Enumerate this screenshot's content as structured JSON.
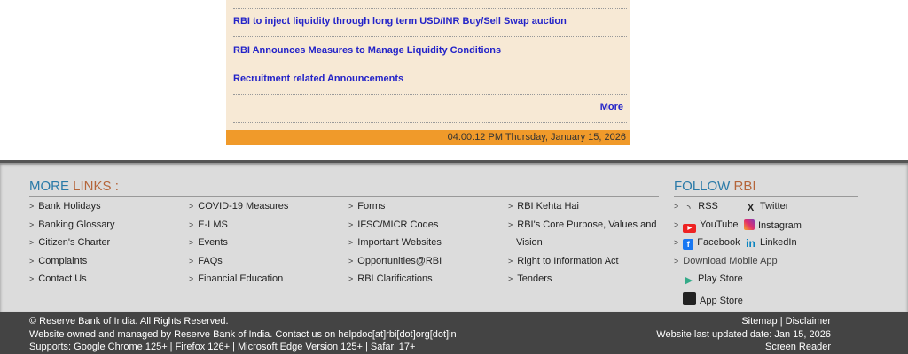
{
  "news": {
    "items": [
      "RBI to inject liquidity through long term USD/INR Buy/Sell Swap auction",
      "RBI Announces Measures to Manage Liquidity Conditions",
      "Recruitment related Announcements"
    ],
    "more": "More",
    "clock": "04:00:12 PM Thursday, January 15, 2026"
  },
  "more_links": {
    "title_a": "MORE",
    "title_b": "LINKS :",
    "columns": [
      [
        "Bank Holidays",
        "Banking Glossary",
        "Citizen's Charter",
        "Complaints",
        "Contact Us"
      ],
      [
        "COVID-19 Measures",
        "E-LMS",
        "Events",
        "FAQs",
        "Financial Education"
      ],
      [
        "Forms",
        "IFSC/MICR Codes",
        "Important Websites",
        "Opportunities@RBI",
        "RBI Clarifications"
      ],
      [
        "RBI Kehta Hai",
        "RBI's Core Purpose, Values and",
        "Vision",
        "Right to Information Act",
        "Tenders"
      ]
    ]
  },
  "follow": {
    "title_a": "FOLLOW",
    "title_b": "RBI",
    "rss": "RSS",
    "twitter": "Twitter",
    "youtube": "YouTube",
    "instagram": "Instagram",
    "facebook": "Facebook",
    "linkedin": "LinkedIn",
    "download": "Download Mobile App",
    "play": "Play Store",
    "app": "App Store"
  },
  "bottom": {
    "copyright": "© Reserve Bank of India. All Rights Reserved.",
    "owned": "Website owned and managed by Reserve Bank of India. Contact us on helpdoc[at]rbi[dot]org[dot]in",
    "supports": "Supports: Google Chrome 125+ | Firefox 126+ | Microsoft Edge Version 125+ | Safari 17+",
    "sitemap": "Sitemap",
    "sep": "|",
    "disclaimer": "Disclaimer",
    "updated": "Website last updated date: Jan 15, 2026",
    "reader": "Screen Reader"
  },
  "colors": {
    "accent_orange": "#f09a2a",
    "link_blue": "#2323c8",
    "panel_bg": "#f7e9d5"
  }
}
